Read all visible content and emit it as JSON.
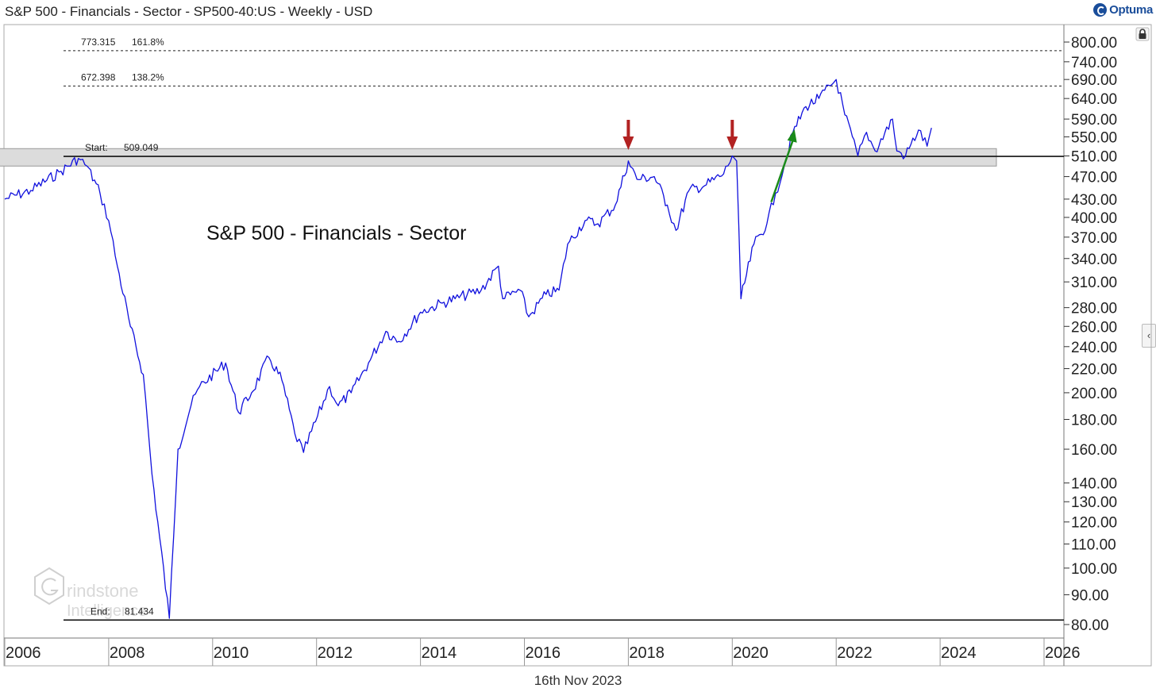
{
  "header": {
    "title": "S&P 500 - Financials - Sector - SP500-40:US - Weekly - USD",
    "brand": "Optuma"
  },
  "footer": {
    "date": "16th Nov 2023"
  },
  "annotations": {
    "fib_top_price": "773.315",
    "fib_top_pct": "161.8%",
    "fib_mid_price": "672.398",
    "fib_mid_pct": "138.2%",
    "start_label": "Start:",
    "start_value": "509.049",
    "end_label": "End:",
    "end_value": "81.434",
    "watermark_line1": "rindstone",
    "watermark_line2": "Intelligence"
  },
  "chart_data": {
    "type": "line",
    "title": "S&P 500 - Financials - Sector",
    "xlabel": "",
    "ylabel": "",
    "y_scale": "log",
    "xlim": [
      "2006",
      "2026"
    ],
    "ylim": [
      78,
      830
    ],
    "x_ticks": [
      "2006",
      "2008",
      "2010",
      "2012",
      "2014",
      "2016",
      "2018",
      "2020",
      "2022",
      "2024",
      "2026"
    ],
    "y_ticks": [
      800,
      740,
      690,
      640,
      590,
      550,
      510,
      470,
      430,
      400,
      370,
      340,
      310,
      280,
      260,
      240,
      220,
      200,
      180,
      160,
      140,
      130,
      120,
      110,
      100,
      90,
      80
    ],
    "y_tick_labels": [
      "800.00",
      "740.00",
      "690.00",
      "640.00",
      "590.00",
      "550.00",
      "510.00",
      "470.00",
      "430.00",
      "400.00",
      "370.00",
      "340.00",
      "310.00",
      "280.00",
      "260.00",
      "240.00",
      "220.00",
      "200.00",
      "180.00",
      "160.00",
      "140.00",
      "130.00",
      "120.00",
      "110.00",
      "100.00",
      "90.00",
      "80.00"
    ],
    "grid": false,
    "series": [
      {
        "x": [
          "2006-01",
          "2006-07",
          "2007-02",
          "2007-06",
          "2007-08",
          "2007-11",
          "2008-01",
          "2008-03",
          "2008-06",
          "2008-09",
          "2008-11",
          "2009-03",
          "2009-05",
          "2009-08",
          "2009-10",
          "2010-04",
          "2010-07",
          "2010-10",
          "2011-02",
          "2011-05",
          "2011-08",
          "2011-10",
          "2012-04",
          "2012-06",
          "2012-09",
          "2013-01",
          "2013-05",
          "2013-08",
          "2014-01",
          "2014-06",
          "2014-09",
          "2015-03",
          "2015-07",
          "2015-08",
          "2015-12",
          "2016-02",
          "2016-06",
          "2016-09",
          "2016-11",
          "2017-03",
          "2017-06",
          "2017-10",
          "2018-01",
          "2018-03",
          "2018-07",
          "2018-10",
          "2018-12",
          "2019-03",
          "2019-07",
          "2019-11",
          "2020-01",
          "2020-02",
          "2020-03",
          "2020-06",
          "2020-09",
          "2020-11",
          "2021-01",
          "2021-03",
          "2021-06",
          "2021-09",
          "2022-01",
          "2022-03",
          "2022-06",
          "2022-08",
          "2022-10",
          "2023-02",
          "2023-03",
          "2023-05",
          "2023-08",
          "2023-10",
          "2023-11"
        ],
        "values": [
          430,
          445,
          480,
          505,
          490,
          440,
          395,
          330,
          260,
          215,
          145,
          82,
          160,
          190,
          205,
          225,
          185,
          200,
          230,
          210,
          170,
          158,
          205,
          190,
          200,
          225,
          255,
          245,
          275,
          285,
          290,
          300,
          330,
          290,
          300,
          270,
          295,
          300,
          360,
          395,
          390,
          420,
          500,
          465,
          470,
          420,
          380,
          445,
          455,
          475,
          510,
          500,
          290,
          360,
          390,
          440,
          490,
          560,
          620,
          640,
          690,
          600,
          510,
          560,
          520,
          590,
          520,
          510,
          565,
          530,
          570
        ]
      }
    ],
    "horizontal_lines": [
      {
        "value": 773.315,
        "style": "dashed",
        "label": "773.315  161.8%"
      },
      {
        "value": 672.398,
        "style": "dashed",
        "label": "672.398  138.2%"
      },
      {
        "value": 509.049,
        "style": "solid",
        "label": "Start: 509.049"
      },
      {
        "value": 81.434,
        "style": "solid",
        "label": "End: 81.434"
      }
    ],
    "zone": {
      "from": 490,
      "to": 525,
      "x_from": "2006-07",
      "x_to": "2025-02",
      "color": "#d9d9d9"
    },
    "markers": [
      {
        "type": "down-arrow",
        "x": "2018-01",
        "color": "#b22222"
      },
      {
        "type": "down-arrow",
        "x": "2020-01",
        "color": "#b22222"
      },
      {
        "type": "up-arrow",
        "x_from": "2020-10",
        "x_to": "2021-03",
        "value_from": 425,
        "value_to": 560,
        "color": "#1a8a1a"
      }
    ],
    "colors": {
      "line": "#1010dd",
      "axis": "#333333",
      "zone": "#d9d9d9"
    }
  }
}
